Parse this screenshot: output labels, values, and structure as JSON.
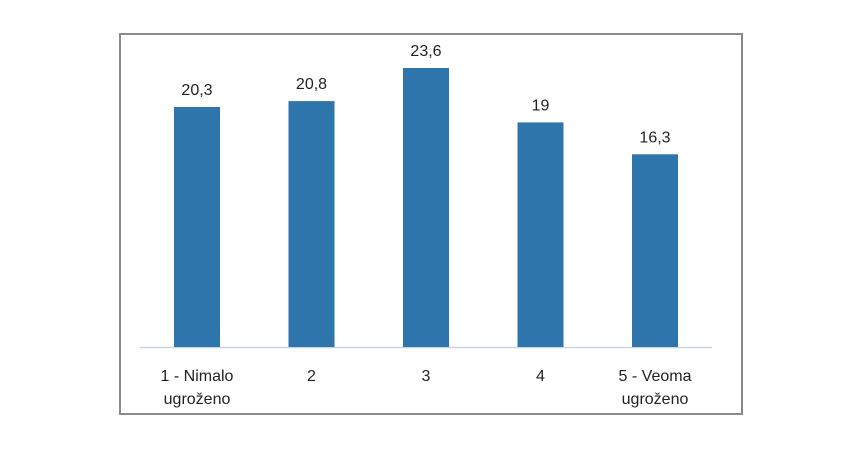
{
  "chart_data": {
    "type": "bar",
    "categories": [
      [
        "1 - Nimalo",
        "ugroženo"
      ],
      [
        "2"
      ],
      [
        "3"
      ],
      [
        "4"
      ],
      [
        "5 - Veoma",
        "ugroženo"
      ]
    ],
    "values": [
      20.3,
      20.8,
      23.6,
      19,
      16.3
    ],
    "value_labels": [
      "20,3",
      "20,8",
      "23,6",
      "19",
      "16,3"
    ],
    "title": "",
    "xlabel": "",
    "ylabel": "",
    "ylim": [
      0,
      23.6
    ],
    "grid": false,
    "bar_color": "#2e75ab",
    "axis_color": "#c9d3e3",
    "frame_color": "#8a8a8a"
  }
}
